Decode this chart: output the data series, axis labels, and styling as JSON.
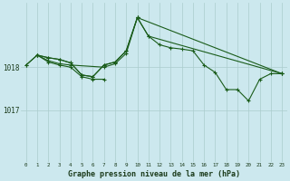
{
  "background_color": "#cce8ee",
  "grid_color": "#aacccc",
  "line_color": "#1a5c1a",
  "title": "Graphe pression niveau de la mer (hPa)",
  "xlim": [
    -0.5,
    23.5
  ],
  "ylim": [
    1015.8,
    1019.5
  ],
  "ytick_positions": [
    1017,
    1018
  ],
  "xticks": [
    0,
    1,
    2,
    3,
    4,
    5,
    6,
    7,
    8,
    9,
    10,
    11,
    12,
    13,
    14,
    15,
    16,
    17,
    18,
    19,
    20,
    21,
    22,
    23
  ],
  "series": [
    {
      "x": [
        0,
        1,
        2,
        3,
        4,
        5,
        6,
        7,
        8,
        9,
        10,
        11,
        12,
        13,
        14,
        15,
        16,
        17,
        18,
        19,
        20,
        21,
        22,
        23
      ],
      "y": [
        1018.05,
        1018.28,
        1018.22,
        1018.18,
        1018.1,
        1017.82,
        1017.78,
        1018.05,
        1018.12,
        1018.38,
        1019.15,
        1018.72,
        1018.52,
        1018.45,
        1018.42,
        1018.38,
        1018.05,
        1017.88,
        1017.48,
        1017.48,
        1017.22,
        1017.72,
        1017.85,
        1017.85
      ]
    },
    {
      "x": [
        1,
        2,
        3,
        4,
        5,
        6,
        7
      ],
      "y": [
        1018.28,
        1018.12,
        1018.05,
        1018.0,
        1017.78,
        1017.72,
        1017.72
      ]
    },
    {
      "x": [
        0,
        1,
        2,
        3,
        4,
        5,
        6,
        7,
        8,
        9,
        10,
        11,
        23
      ],
      "y": [
        1018.05,
        1018.28,
        1018.22,
        1018.18,
        1018.1,
        1017.82,
        1017.78,
        1018.05,
        1018.12,
        1018.38,
        1019.15,
        1018.72,
        1017.85
      ]
    },
    {
      "x": [
        1,
        2,
        3,
        4,
        7,
        8,
        9,
        10,
        23
      ],
      "y": [
        1018.28,
        1018.15,
        1018.08,
        1018.05,
        1018.0,
        1018.08,
        1018.32,
        1019.15,
        1017.85
      ]
    }
  ]
}
